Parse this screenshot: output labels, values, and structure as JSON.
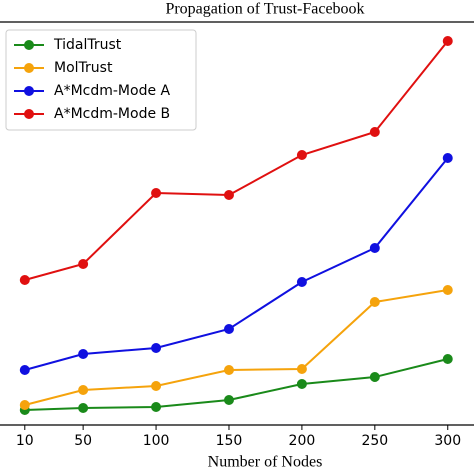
{
  "chart_data": {
    "type": "line",
    "title": "Propagation of Trust-Facebook",
    "xlabel": "Number of Nodes",
    "x": [
      10,
      50,
      100,
      150,
      200,
      250,
      300
    ],
    "xlim": [
      -7,
      318
    ],
    "xticks": [
      10,
      50,
      100,
      150,
      200,
      250,
      300
    ],
    "ylim": [
      0,
      100
    ],
    "legend": "upper left",
    "series": [
      {
        "name": "TidalTrust",
        "color": "#1a8a1a",
        "values": [
          3.75,
          4.25,
          4.5,
          6.25,
          10.25,
          12,
          16.5
        ]
      },
      {
        "name": "MolTrust",
        "color": "#f5a30c",
        "values": [
          5,
          8.75,
          9.75,
          13.75,
          14,
          30.75,
          33.75
        ]
      },
      {
        "name": "A*Mcdm-Mode A",
        "color": "#1010e0",
        "values": [
          13.75,
          17.75,
          19.25,
          24,
          35.75,
          44.25,
          66.75
        ]
      },
      {
        "name": "A*Mcdm-Mode B",
        "color": "#e01010",
        "values": [
          36.25,
          40.25,
          58,
          57.5,
          67.5,
          73.25,
          96
        ]
      }
    ]
  }
}
